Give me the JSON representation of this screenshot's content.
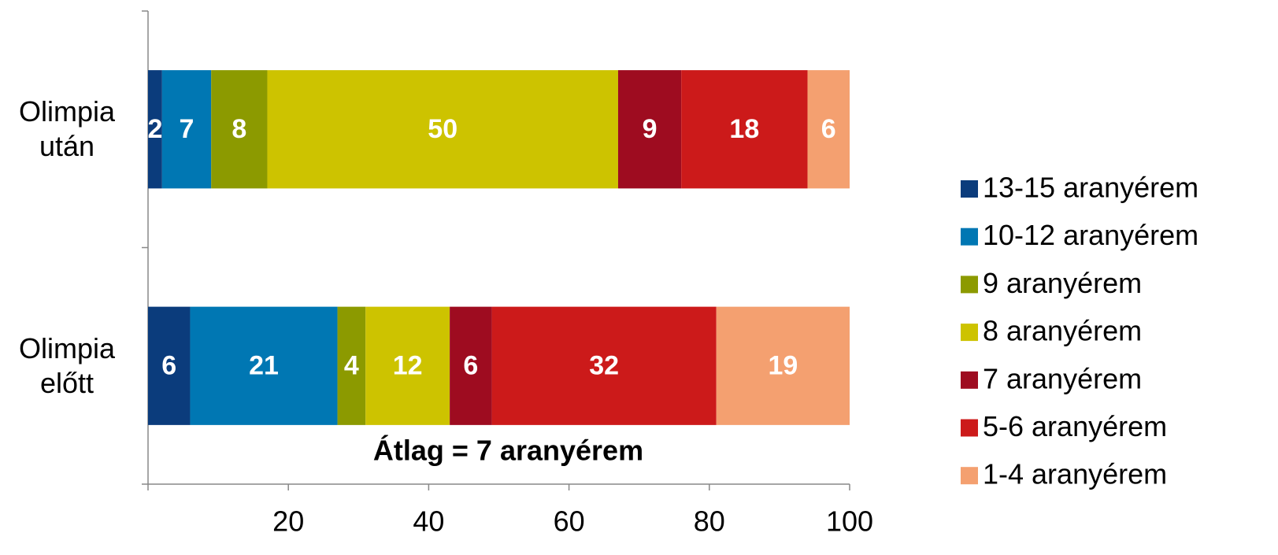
{
  "chart_data": {
    "type": "stacked_barh",
    "categories": [
      "Olimpia után",
      "Olimpia előtt"
    ],
    "series": [
      {
        "name": "13-15 aranyérem",
        "color": "#0b3c7c",
        "values": [
          2,
          6
        ]
      },
      {
        "name": "10-12 aranyérem",
        "color": "#0077b3",
        "values": [
          7,
          21
        ]
      },
      {
        "name": "9 aranyérem",
        "color": "#8c9a00",
        "values": [
          8,
          4
        ]
      },
      {
        "name": "8 aranyérem",
        "color": "#cdc300",
        "values": [
          50,
          12
        ]
      },
      {
        "name": "7 aranyérem",
        "color": "#9e0c20",
        "values": [
          9,
          6
        ]
      },
      {
        "name": "5-6 aranyérem",
        "color": "#cc1a1a",
        "values": [
          18,
          32
        ]
      },
      {
        "name": "1-4 aranyérem",
        "color": "#f4a070",
        "values": [
          6,
          19
        ]
      }
    ],
    "annotation": "Átlag = 7 aranyérem",
    "xlim": [
      0,
      100
    ],
    "xticks": [
      20,
      40,
      60,
      80,
      100
    ],
    "legend": "right"
  }
}
